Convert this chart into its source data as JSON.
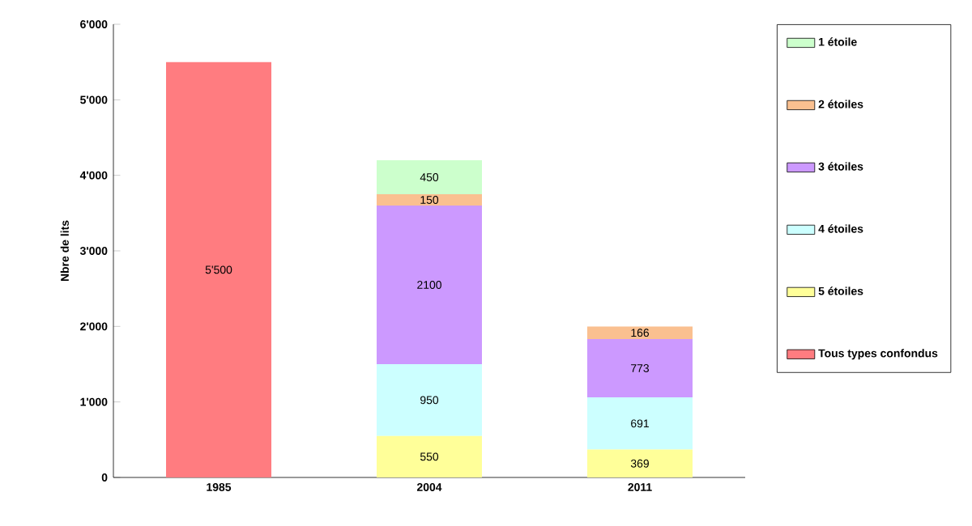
{
  "chart_data": {
    "type": "bar",
    "stacked": true,
    "ylabel": "Nbre de lits",
    "categories": [
      "1985",
      "2004",
      "2011"
    ],
    "ylim": [
      0,
      6000
    ],
    "yticks": [
      {
        "value": 0,
        "label": "0"
      },
      {
        "value": 1000,
        "label": "1'000"
      },
      {
        "value": 2000,
        "label": "2'000"
      },
      {
        "value": 3000,
        "label": "3'000"
      },
      {
        "value": 4000,
        "label": "4'000"
      },
      {
        "value": 5000,
        "label": "5'000"
      },
      {
        "value": 6000,
        "label": "6'000"
      }
    ],
    "legend": "right",
    "series": [
      {
        "name": "Tous types confondus",
        "color": "#ff7c80",
        "values": [
          5500,
          null,
          null
        ],
        "value_labels": [
          "5'500",
          null,
          null
        ]
      },
      {
        "name": "5 étoiles",
        "color": "#ffff99",
        "values": [
          null,
          550,
          369
        ],
        "value_labels": [
          null,
          "550",
          "369"
        ]
      },
      {
        "name": "4 étoiles",
        "color": "#ccffff",
        "values": [
          null,
          950,
          691
        ],
        "value_labels": [
          null,
          "950",
          "691"
        ]
      },
      {
        "name": "3 étoiles",
        "color": "#cc99ff",
        "values": [
          null,
          2100,
          773
        ],
        "value_labels": [
          null,
          "2100",
          "773"
        ]
      },
      {
        "name": "2 étoiles",
        "color": "#fac090",
        "values": [
          null,
          150,
          166
        ],
        "value_labels": [
          null,
          "150",
          "166"
        ]
      },
      {
        "name": "1 étoile",
        "color": "#ccffcc",
        "values": [
          null,
          450,
          null
        ],
        "value_labels": [
          null,
          "450",
          null
        ]
      }
    ]
  }
}
